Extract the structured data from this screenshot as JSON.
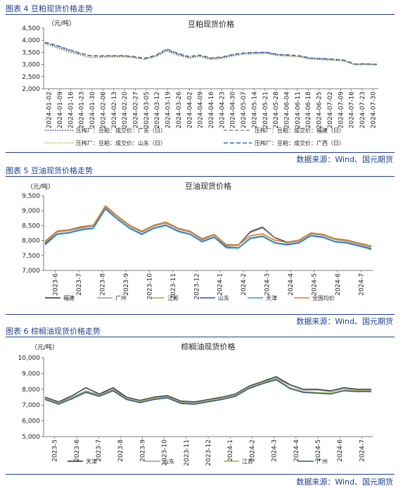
{
  "source_text": "数据来源：Wind、国元期货",
  "charts": [
    {
      "fig_label": "图表 4 豆粕现货价格走势",
      "source": "数据来源：Wind、国元期货",
      "chart_data": {
        "type": "line",
        "title": "豆粕现货价格",
        "unit": "（元/吨）",
        "ylim": [
          2000,
          4500
        ],
        "yticks": [
          "2,000",
          "2,500",
          "3,000",
          "3,500",
          "4,000",
          "4,500"
        ],
        "ytick_values": [
          2000,
          2500,
          3000,
          3500,
          4000,
          4500
        ],
        "xticks": [
          "2024-01-02",
          "2024-01-09",
          "2024-01-16",
          "2024-01-23",
          "2024-01-30",
          "2024-02-06",
          "2024-02-13",
          "2024-02-20",
          "2024-02-27",
          "2024-03-05",
          "2024-03-12",
          "2024-03-19",
          "2024-03-26",
          "2024-04-02",
          "2024-04-09",
          "2024-04-16",
          "2024-04-23",
          "2024-04-30",
          "2024-05-07",
          "2024-05-14",
          "2024-05-21",
          "2024-05-28",
          "2024-06-04",
          "2024-06-11",
          "2024-06-18",
          "2024-06-25",
          "2024-07-02",
          "2024-07-09",
          "2024-07-16",
          "2024-07-23",
          "2024-07-30"
        ],
        "series": [
          {
            "name": "压榨厂：豆粕：成交价：广东（日）",
            "color": "#1f3a7a",
            "dash": "1.5,2",
            "values": [
              3880,
              3730,
              3560,
              3430,
              3290,
              3300,
              3310,
              3320,
              3280,
              3210,
              3330,
              3560,
              3400,
              3280,
              3340,
              3210,
              3260,
              3370,
              3440,
              3460,
              3470,
              3380,
              3360,
              3320,
              3230,
              3210,
              3180,
              3150,
              2990,
              3000,
              2980
            ]
          },
          {
            "name": "压榨厂：豆粕：成交价：福建（日）",
            "color": "#8c8c8c",
            "dash": "5,3",
            "values": [
              3900,
              3780,
              3620,
              3470,
              3360,
              3340,
              3350,
              3350,
              3310,
              3240,
              3360,
              3610,
              3440,
              3310,
              3370,
              3250,
              3290,
              3400,
              3470,
              3490,
              3490,
              3410,
              3380,
              3350,
              3260,
              3240,
              3210,
              3180,
              3010,
              3020,
              3000
            ]
          },
          {
            "name": "压榨厂：豆粕：成交价：山东（日）",
            "color": "#a8b33a",
            "dash": "1.5,2",
            "values": [
              3840,
              3700,
              3530,
              3410,
              3300,
              3300,
              3320,
              3320,
              3290,
              3200,
              3310,
              3540,
              3370,
              3260,
              3320,
              3200,
              3240,
              3350,
              3420,
              3430,
              3450,
              3360,
              3340,
              3310,
              3220,
              3200,
              3170,
              3140,
              2980,
              2990,
              2970
            ]
          },
          {
            "name": "压榨厂：豆粕：成交价：广西（日）",
            "color": "#3a66b0",
            "dash": "6,3",
            "values": [
              3920,
              3800,
              3640,
              3500,
              3370,
              3360,
              3370,
              3370,
              3330,
              3260,
              3380,
              3640,
              3460,
              3330,
              3390,
              3270,
              3310,
              3420,
              3480,
              3500,
              3510,
              3420,
              3400,
              3360,
              3270,
              3250,
              3220,
              3190,
              3020,
              3030,
              3010
            ]
          }
        ],
        "legend": "bottom"
      }
    },
    {
      "fig_label": "图表 5 豆油现货价格走势",
      "source": "数据来源：Wind、国元期货",
      "chart_data": {
        "type": "line",
        "title": "豆油现货价格",
        "unit": "（元/吨）",
        "ylim": [
          7000,
          9500
        ],
        "yticks": [
          "7,000",
          "7,500",
          "8,000",
          "8,500",
          "9,000",
          "9,500"
        ],
        "ytick_values": [
          7000,
          7500,
          8000,
          8500,
          9000,
          9500
        ],
        "xticks": [
          "2023-6",
          "2023-7",
          "2023-8",
          "2023-9",
          "2023-10",
          "2023-11",
          "2023-12",
          "2024-1",
          "2024-2",
          "2024-3",
          "2024-4",
          "2024-5",
          "2024-6",
          "2024-7"
        ],
        "series": [
          {
            "name": "福建",
            "color": "#2b2b2b",
            "values": [
              7950,
              8300,
              8350,
              8450,
              8500,
              9150,
              8800,
              8500,
              8300,
              8500,
              8600,
              8400,
              8300,
              8050,
              8200,
              7850,
              7850,
              8300,
              8450,
              8100,
              7950,
              8000,
              8250,
              8200,
              8050,
              8000,
              7900,
              7800
            ]
          },
          {
            "name": "广州",
            "color": "#9a9a9a",
            "values": [
              7920,
              8280,
              8330,
              8420,
              8480,
              9120,
              8780,
              8480,
              8280,
              8480,
              8580,
              8380,
              8280,
              8020,
              8180,
              7820,
              7830,
              8270,
              8420,
              8080,
              7920,
              7980,
              8220,
              8180,
              8030,
              7980,
              7880,
              7780
            ]
          },
          {
            "name": "江苏",
            "color": "#9bb33a",
            "values": [
              7980,
              8320,
              8370,
              8470,
              8520,
              9170,
              8820,
              8520,
              8320,
              8520,
              8620,
              8420,
              8320,
              8070,
              8210,
              7870,
              7860,
              8150,
              8220,
              8000,
              7950,
              8020,
              8260,
              8210,
              8070,
              8020,
              7920,
              7820
            ]
          },
          {
            "name": "山东",
            "color": "#2f4f9f",
            "values": [
              7880,
              8220,
              8270,
              8370,
              8420,
              9070,
              8720,
              8420,
              8220,
              8420,
              8520,
              8320,
              8220,
              7970,
              8120,
              7780,
              7760,
              8080,
              8150,
              7930,
              7870,
              7930,
              8170,
              8120,
              7970,
              7930,
              7830,
              7730
            ]
          },
          {
            "name": "天津",
            "color": "#3a9ad0",
            "values": [
              7850,
              8200,
              8250,
              8350,
              8400,
              9050,
              8700,
              8400,
              8200,
              8400,
              8500,
              8300,
              8200,
              7950,
              8100,
              7750,
              7740,
              8060,
              8130,
              7910,
              7850,
              7910,
              8150,
              8100,
              7950,
              7910,
              7810,
              7700
            ]
          },
          {
            "name": "全国均价",
            "color": "#e0782a",
            "values": [
              7960,
              8310,
              8360,
              8460,
              8510,
              9160,
              8810,
              8510,
              8310,
              8510,
              8610,
              8410,
              8310,
              8060,
              8200,
              7860,
              7850,
              8160,
              8230,
              8010,
              7940,
              8010,
              8250,
              8200,
              8060,
              8010,
              7910,
              7810
            ]
          }
        ],
        "legend": "bottom"
      }
    },
    {
      "fig_label": "图表 6 棕榈油现货价格走势",
      "source": "数据来源：Wind、国元期货",
      "chart_data": {
        "type": "line",
        "title": "棕榈油现货价格",
        "unit": "（元/吨）",
        "ylim": [
          5000,
          10000
        ],
        "yticks": [
          "5,000",
          "6,000",
          "7,000",
          "8,000",
          "9,000",
          "10,000"
        ],
        "ytick_values": [
          5000,
          6000,
          7000,
          8000,
          9000,
          10000
        ],
        "xticks": [
          "2023-5",
          "2023-6",
          "2023-7",
          "2023-8",
          "2023-9",
          "2023-10",
          "2023-11",
          "2023-12",
          "2024-1",
          "2024-2",
          "2024-3",
          "2024-4",
          "2024-5",
          "2024-6",
          "2024-7"
        ],
        "series": [
          {
            "name": "天津",
            "color": "#2b2b2b",
            "values": [
              7500,
              7200,
              7600,
              8100,
              7700,
              8100,
              7500,
              7300,
              7500,
              7600,
              7250,
              7200,
              7350,
              7500,
              7700,
              8200,
              8500,
              8800,
              8300,
              8000,
              8000,
              7900,
              8100,
              8000,
              8000
            ]
          },
          {
            "name": "山东",
            "color": "#9a9a9a",
            "values": [
              7450,
              7150,
              7500,
              7900,
              7650,
              8000,
              7450,
              7250,
              7450,
              7550,
              7200,
              7150,
              7300,
              7450,
              7650,
              8150,
              8450,
              8700,
              8250,
              7950,
              7950,
              7850,
              8050,
              7950,
              7950
            ]
          },
          {
            "name": "江苏",
            "color": "#9bb33a",
            "values": [
              7400,
              7100,
              7450,
              7850,
              7600,
              7950,
              7400,
              7200,
              7400,
              7500,
              7150,
              7100,
              7250,
              7400,
              7600,
              8100,
              8400,
              8650,
              8100,
              7850,
              7800,
              7750,
              7950,
              7900,
              7900
            ]
          },
          {
            "name": "广州",
            "color": "#2f4f9f",
            "values": [
              7350,
              7050,
              7400,
              7800,
              7550,
              7900,
              7350,
              7150,
              7350,
              7450,
              7100,
              7050,
              7200,
              7350,
              7550,
              8050,
              8350,
              8600,
              8050,
              7800,
              7750,
              7700,
              7900,
              7850,
              7850
            ]
          }
        ],
        "legend": "bottom"
      }
    }
  ]
}
